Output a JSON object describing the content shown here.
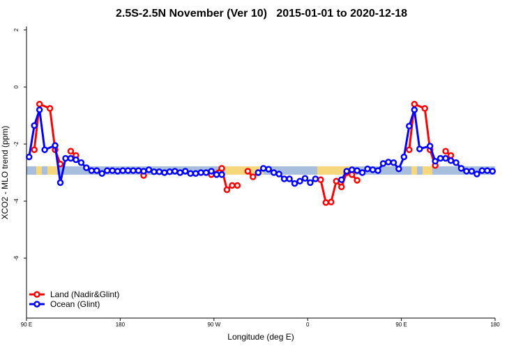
{
  "chart_data": {
    "type": "line",
    "title": "2.5S-2.5N November (Ver 10)   2015-01-01 to 2020-12-18",
    "xlabel": "Longitude (deg E)",
    "ylabel": "XCO2 - MLO trend (ppm)",
    "xlim": [
      90,
      540
    ],
    "ylim": [
      -8.1,
      2.1
    ],
    "xticks": [
      {
        "value": 90,
        "label": "90 E"
      },
      180,
      {
        "value": 270,
        "label": "90 W"
      },
      {
        "value": 360,
        "label": "0"
      },
      {
        "value": 450,
        "label": "90 E"
      },
      {
        "value": 540,
        "label": "180"
      }
    ],
    "yticks": [
      2,
      0,
      -2,
      -4,
      -6
    ],
    "legend": "bottom-left",
    "series": [
      {
        "name": "Land (Nadir&Glint)",
        "color": "#ff0000",
        "x": [
          97.5,
          102.5,
          112.5,
          117.5,
          122.5,
          127.5,
          132.5,
          137.5,
          170,
          202.5,
          235,
          267.5,
          277.5,
          282.5,
          287.5,
          292.5,
          297.5,
          302.5,
          307.5,
          312.5,
          340,
          372.5,
          377.5,
          382.5,
          387.5,
          392.5,
          397.5,
          402.5,
          407.5,
          430,
          457.5,
          462.5,
          472.5,
          477.5,
          482.5,
          487.5,
          492.5,
          497.5
        ],
        "values": [
          -2.2,
          -0.6,
          -0.75,
          -2.2,
          -2.7,
          null,
          -2.25,
          -2.4,
          null,
          -3.1,
          null,
          -3.07,
          -2.85,
          -3.6,
          -3.45,
          -3.45,
          null,
          -2.95,
          -3.15,
          -3.0,
          null,
          -3.25,
          -4.05,
          -4.03,
          -3.3,
          -3.5,
          -3.0,
          -3.07,
          -3.27,
          null,
          -2.2,
          -0.6,
          -0.75,
          -2.2,
          -2.75,
          null,
          -2.25,
          -2.4
        ]
      },
      {
        "name": "Ocean (Glint)",
        "color": "#0000ff",
        "x": [
          92.5,
          97.5,
          102.5,
          107.5,
          117.5,
          122.5,
          127.5,
          132.5,
          137.5,
          142.5,
          147.5,
          152.5,
          157.5,
          162.5,
          167.5,
          172.5,
          177.5,
          182.5,
          187.5,
          192.5,
          197.5,
          202.5,
          207.5,
          212.5,
          217.5,
          222.5,
          227.5,
          232.5,
          237.5,
          242.5,
          247.5,
          252.5,
          257.5,
          262.5,
          267.5,
          272.5,
          277.5,
          295,
          312.5,
          317.5,
          322.5,
          327.5,
          332.5,
          337.5,
          342.5,
          347.5,
          352.5,
          357.5,
          362.5,
          367.5,
          380,
          392.5,
          397.5,
          402.5,
          407.5,
          412.5,
          417.5,
          422.5,
          427.5,
          432.5,
          437.5,
          442.5,
          447.5,
          452.5,
          457.5,
          462.5,
          467.5,
          477.5,
          482.5,
          487.5,
          492.5,
          497.5,
          502.5,
          507.5,
          512.5,
          517.5,
          522.5,
          527.5,
          532.5,
          537.5
        ],
        "values": [
          -2.45,
          -1.35,
          -0.8,
          -2.2,
          -2.05,
          -3.35,
          -2.5,
          -2.5,
          -2.55,
          -2.65,
          -2.83,
          -2.93,
          -2.93,
          -3.03,
          -2.93,
          -2.93,
          -2.95,
          -2.93,
          -2.93,
          -2.93,
          -2.93,
          -2.95,
          -2.9,
          -2.97,
          -2.97,
          -3.0,
          -2.97,
          -2.95,
          -3.0,
          -2.95,
          -3.03,
          -3.03,
          -3.0,
          -3.0,
          -2.95,
          -3.07,
          -3.07,
          null,
          -3.0,
          -2.85,
          -2.88,
          -3.0,
          -3.05,
          -3.22,
          -3.22,
          -3.38,
          -3.3,
          -3.2,
          -3.35,
          -3.22,
          null,
          -3.25,
          -2.95,
          -2.9,
          -2.93,
          -3.0,
          -2.87,
          -2.9,
          -2.93,
          -2.68,
          -2.63,
          -2.65,
          -2.87,
          -2.45,
          -1.37,
          -0.8,
          -2.17,
          -2.07,
          -2.6,
          -2.5,
          -2.5,
          -2.58,
          -2.65,
          -2.85,
          -2.95,
          -2.95,
          -3.05,
          -2.93,
          -2.93,
          -2.95
        ]
      }
    ]
  }
}
